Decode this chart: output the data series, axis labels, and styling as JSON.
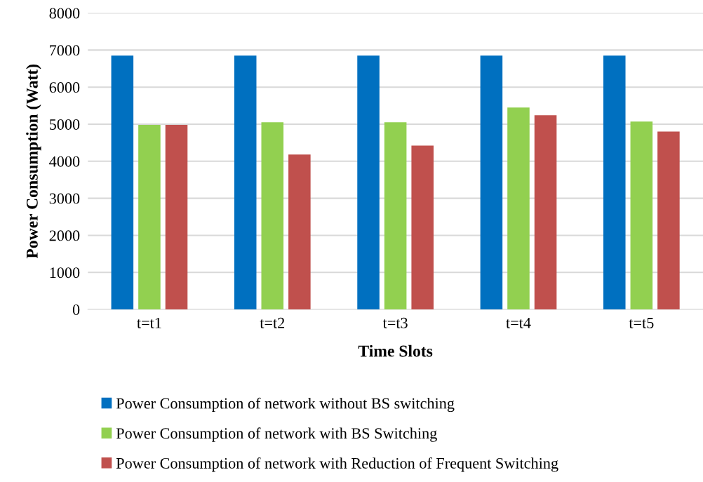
{
  "chart_data": {
    "type": "bar",
    "xlabel": "Time Slots",
    "ylabel": "Power Consumption (Watt)",
    "categories": [
      "t=t1",
      "t=t2",
      "t=t3",
      "t=t4",
      "t=t5"
    ],
    "series": [
      {
        "name": "Power Consumption of network without BS switching",
        "color": "#0070c0",
        "values": [
          6850,
          6850,
          6850,
          6850,
          6850
        ]
      },
      {
        "name": "Power Consumption of network with BS Switching",
        "color": "#92d050",
        "values": [
          4980,
          5050,
          5050,
          5450,
          5070
        ]
      },
      {
        "name": "Power Consumption of network with Reduction of Frequent Switching",
        "color": "#c0504d",
        "values": [
          4980,
          4180,
          4420,
          5240,
          4800
        ]
      }
    ],
    "ylim": [
      0,
      8000
    ],
    "yticks": [
      0,
      1000,
      2000,
      3000,
      4000,
      5000,
      6000,
      7000,
      8000
    ],
    "grid": "y",
    "legend": "bottom"
  }
}
